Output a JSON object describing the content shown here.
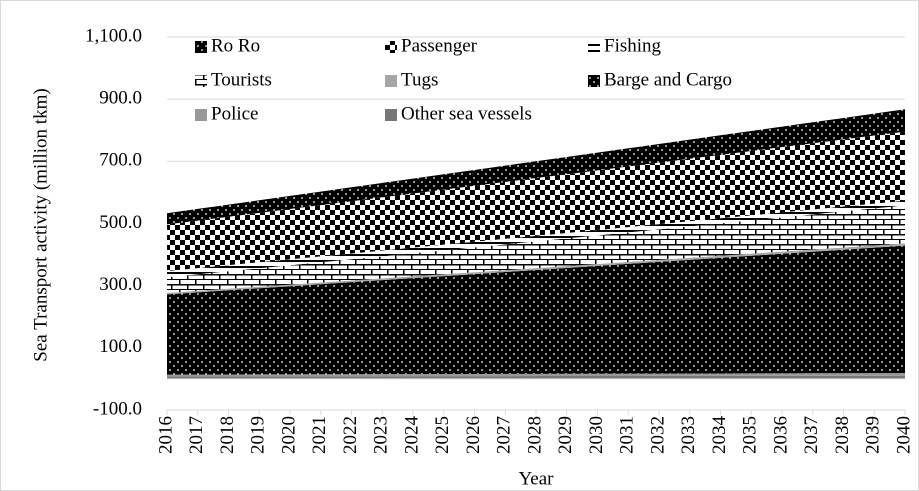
{
  "chart_data": {
    "type": "stacked_area",
    "y_label": "Sea Transport activity (million tkm)",
    "x_label": "Year",
    "x": [
      2016,
      2017,
      2018,
      2019,
      2020,
      2021,
      2022,
      2023,
      2024,
      2025,
      2026,
      2027,
      2028,
      2029,
      2030,
      2031,
      2032,
      2033,
      2034,
      2035,
      2036,
      2037,
      2038,
      2039,
      2040
    ],
    "xlim": [
      2016,
      2040
    ],
    "ylim": [
      -100,
      1100
    ],
    "yticks": [
      {
        "value": -100,
        "label": "-100.0"
      },
      {
        "value": 100,
        "label": "100.0"
      },
      {
        "value": 300,
        "label": "300.0"
      },
      {
        "value": 500,
        "label": "500.0"
      },
      {
        "value": 700,
        "label": "700.0"
      },
      {
        "value": 900,
        "label": "900.0"
      },
      {
        "value": 1100,
        "label": "1,100.0"
      }
    ],
    "grid": true,
    "legend": "top",
    "series": [
      {
        "name": "Ro Ro",
        "color": "#000000",
        "pattern": "dots",
        "values": [
          36,
          37.5,
          39,
          40.5,
          42,
          43.5,
          45,
          46.5,
          48,
          49.5,
          51,
          52.5,
          54,
          55.5,
          57,
          58.5,
          60,
          61.5,
          63,
          64.5,
          66,
          67.5,
          69,
          70.5,
          72
        ]
      },
      {
        "name": "Passenger",
        "color": "#000000",
        "pattern": "checker",
        "values": [
          150,
          153,
          156,
          159,
          162,
          165,
          168,
          171,
          174,
          177,
          180,
          183,
          186,
          189,
          192,
          195,
          198,
          201,
          204,
          207,
          210,
          213,
          216,
          219,
          222
        ]
      },
      {
        "name": "Fishing",
        "color": "#000000",
        "pattern": "hline",
        "values": [
          20,
          19.8,
          19.6,
          19.4,
          19.2,
          19,
          18.8,
          18.6,
          18.4,
          18.2,
          18,
          17.8,
          17.6,
          17.4,
          17.2,
          17,
          16.8,
          16.6,
          16.4,
          16.2,
          16,
          15.8,
          15.6,
          15.4,
          15.2
        ]
      },
      {
        "name": "Tourists",
        "color": "#000000",
        "pattern": "brick",
        "values": [
          50,
          53,
          56,
          59,
          62,
          65,
          68,
          71,
          74,
          77,
          80,
          83,
          86,
          89,
          92,
          95,
          98,
          101,
          104,
          107,
          110,
          113,
          116,
          119,
          122
        ]
      },
      {
        "name": "Tugs",
        "color": "#a6a6a6",
        "pattern": "solid",
        "values": [
          5,
          5.1,
          5.2,
          5.3,
          5.4,
          5.5,
          5.6,
          5.7,
          5.8,
          5.9,
          6,
          6.1,
          6.2,
          6.3,
          6.4,
          6.5,
          6.6,
          6.7,
          6.8,
          6.9,
          7,
          7.1,
          7.2,
          7.3,
          7.4
        ]
      },
      {
        "name": "Barge and Cargo",
        "color": "#000000",
        "pattern": "dots",
        "values": [
          258,
          264.3,
          270.7,
          277,
          283.3,
          289.7,
          296,
          302.3,
          308.7,
          315,
          321.3,
          327.7,
          334,
          340.3,
          346.7,
          353,
          359.3,
          365.7,
          372,
          378.3,
          384.7,
          391,
          397.3,
          403.7,
          410
        ]
      },
      {
        "name": "Police",
        "color": "#999999",
        "pattern": "solid",
        "values": [
          6,
          6.1,
          6.2,
          6.3,
          6.4,
          6.5,
          6.6,
          6.7,
          6.8,
          6.9,
          7,
          7.1,
          7.2,
          7.3,
          7.4,
          7.5,
          7.6,
          7.7,
          7.8,
          7.9,
          8,
          8.1,
          8.2,
          8.3,
          8.4
        ]
      },
      {
        "name": "Other sea vessels",
        "color": "#777777",
        "pattern": "solid",
        "values": [
          8,
          8.1,
          8.2,
          8.3,
          8.4,
          8.5,
          8.6,
          8.7,
          8.8,
          8.9,
          9,
          9.1,
          9.2,
          9.3,
          9.4,
          9.5,
          9.6,
          9.7,
          9.8,
          9.9,
          10,
          10.1,
          10.2,
          10.3,
          10.4
        ]
      }
    ]
  }
}
